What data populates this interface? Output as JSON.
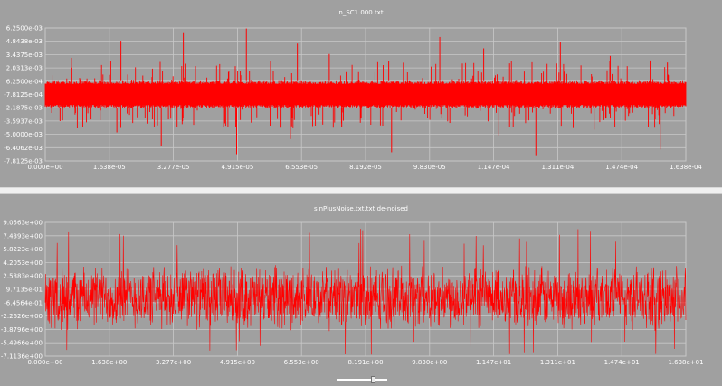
{
  "chart_data": [
    {
      "type": "line",
      "title": "n_SC1.000.txt",
      "color": "#ff0000",
      "xlim": [
        0,
        0.0001638
      ],
      "ylim": [
        -0.0078125,
        0.00625
      ],
      "xticks": [
        "0.000e+00",
        "1.638e-05",
        "3.277e-05",
        "4.915e-05",
        "6.553e-05",
        "8.192e-05",
        "9.830e-05",
        "1.147e-04",
        "1.311e-04",
        "1.474e-04",
        "1.638e-04"
      ],
      "yticks": [
        "6.2500e-03",
        "4.8438e-03",
        "3.4375e-03",
        "2.0313e-03",
        "6.2500e-04",
        "-7.8125e-04",
        "-2.1875e-03",
        "-3.5937e-03",
        "-5.0000e-03",
        "-6.4062e-03",
        "-7.8125e-03"
      ],
      "band": [
        -0.0021875,
        0.000625
      ],
      "spikes_up": [
        0.0031,
        0.0049,
        0.0058,
        0.0062,
        0.0046,
        0.0035,
        0.0028,
        0.0053,
        0.0041,
        0.0048,
        0.0033,
        0.0026
      ],
      "spikes_down": [
        -0.0036,
        -0.0048,
        -0.0062,
        -0.0071,
        -0.0055,
        -0.0042,
        -0.0069,
        -0.0038,
        -0.0051,
        -0.0073,
        -0.0045,
        -0.0066
      ]
    },
    {
      "type": "line",
      "title": "sinPlusNoise.txt.txt de-noised",
      "color": "#ff0000",
      "xlim": [
        0,
        16.38
      ],
      "ylim": [
        -7.1136,
        9.0563
      ],
      "xticks": [
        "0.000e+00",
        "1.638e+00",
        "3.277e+00",
        "4.915e+00",
        "6.553e+00",
        "8.191e+00",
        "9.830e+00",
        "1.147e+01",
        "1.311e+01",
        "1.474e+01",
        "1.638e+01"
      ],
      "yticks": [
        "9.0563e+00",
        "7.4393e+00",
        "5.8223e+00",
        "4.2053e+00",
        "2.5883e+00",
        "9.7135e-01",
        "-6.4564e-01",
        "-2.2626e+00",
        "-3.8796e+00",
        "-5.4966e+00",
        "-7.1136e+00"
      ],
      "typical_amplitude": 3.6,
      "peak_max": 9.0,
      "peak_min": -7.0
    }
  ]
}
